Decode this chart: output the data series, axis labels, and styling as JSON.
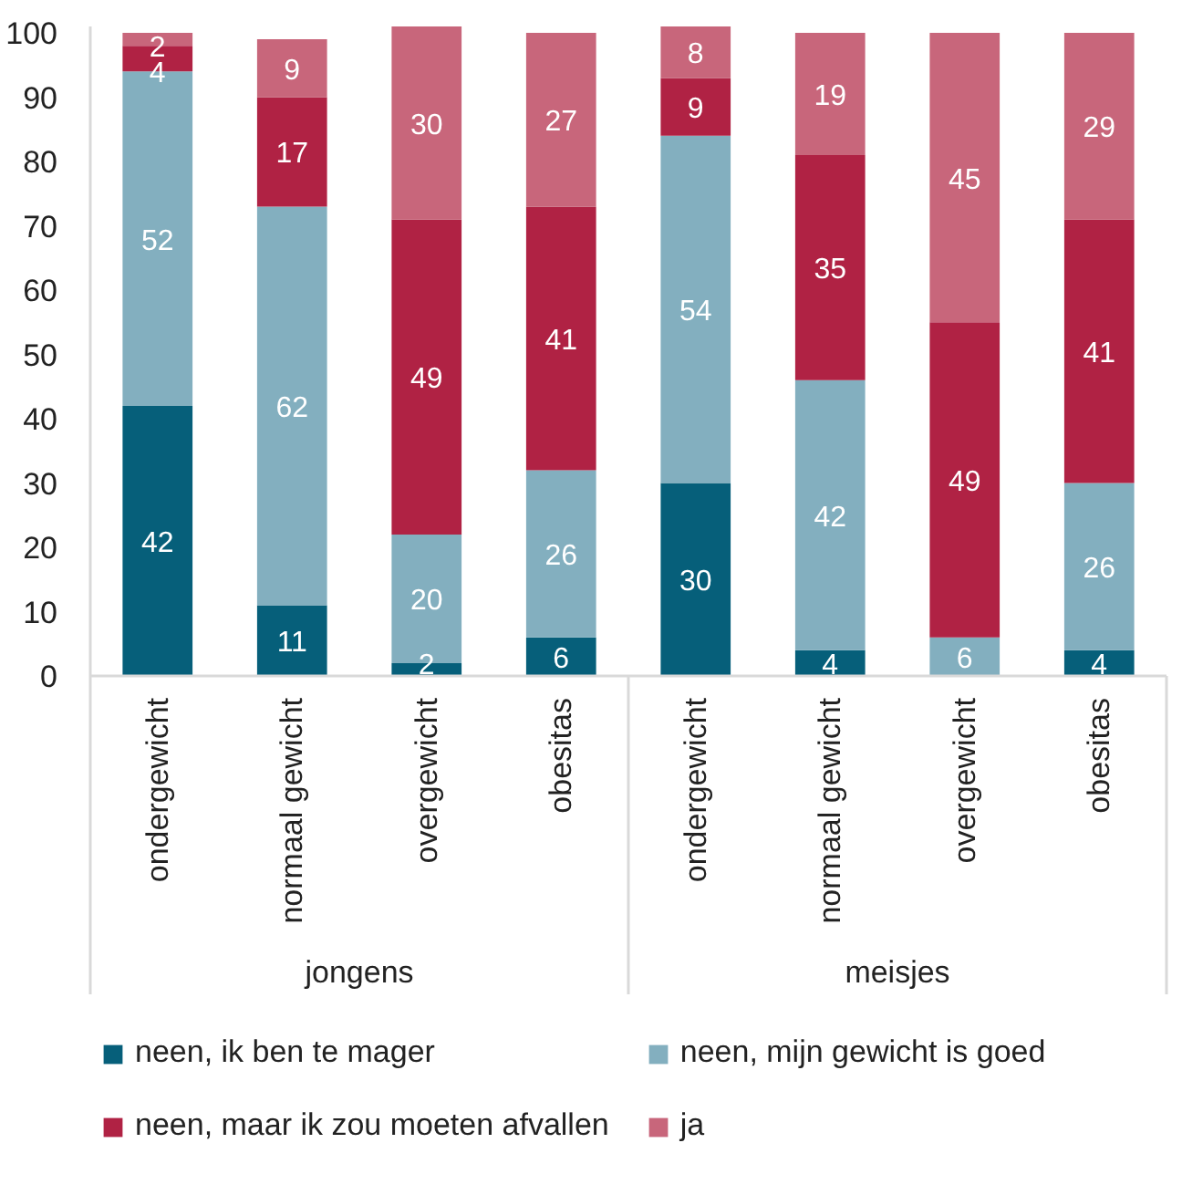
{
  "chart_data": {
    "type": "bar",
    "stacked": true,
    "legend": "bottom",
    "categories": [
      "ondergewicht",
      "normaal gewicht",
      "overgewicht",
      "obesitas",
      "ondergewicht",
      "normaal gewicht",
      "overgewicht",
      "obesitas"
    ],
    "annotations": [
      "jongens",
      "meisjes"
    ],
    "ylim": [
      0,
      101
    ],
    "yticks": [
      0,
      10,
      20,
      30,
      40,
      50,
      60,
      70,
      80,
      90,
      100
    ],
    "series": [
      {
        "name": "neen, ik ben te mager",
        "color": "#065f7a",
        "values": [
          42,
          11,
          2,
          6,
          30,
          4,
          0,
          4
        ],
        "value_labels": [
          "42",
          "11",
          "2",
          "6",
          "30",
          "4",
          null,
          "4"
        ]
      },
      {
        "name": "neen, mijn gewicht is goed",
        "color": "#83afbf",
        "values": [
          52,
          62,
          20,
          26,
          54,
          42,
          6,
          26
        ],
        "value_labels": [
          "52",
          "62",
          "20",
          "26",
          "54",
          "42",
          "6",
          "26"
        ]
      },
      {
        "name": "neen, maar ik zou moeten afvallen",
        "color": "#b02244",
        "values": [
          4,
          17,
          49,
          41,
          9,
          35,
          49,
          41
        ],
        "value_labels": [
          "4",
          "17",
          "49",
          "41",
          "9",
          "35",
          "49",
          "41"
        ]
      },
      {
        "name": "ja",
        "color": "#c8667b",
        "values": [
          2,
          9,
          30,
          27,
          8,
          19,
          45,
          29
        ],
        "value_labels": [
          "2",
          "9",
          "30",
          "27",
          "8",
          "19",
          "45",
          "29"
        ]
      }
    ]
  }
}
